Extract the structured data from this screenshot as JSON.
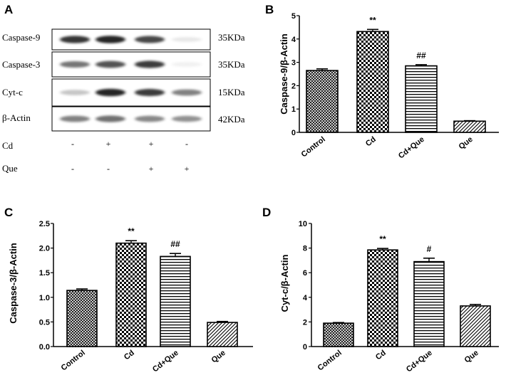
{
  "blot": {
    "letter": "A",
    "rows": [
      {
        "protein": "Caspase-9",
        "size": "35KDa",
        "bands": [
          0.88,
          0.95,
          0.8,
          0.1
        ]
      },
      {
        "protein": "Caspase-3",
        "size": "35KDa",
        "bands": [
          0.6,
          0.75,
          0.85,
          0.06
        ]
      },
      {
        "protein": "Cyt-c",
        "size": "15KDa",
        "bands": [
          0.25,
          0.95,
          0.85,
          0.55
        ]
      },
      {
        "protein": "β-Actin",
        "size": "42KDa",
        "bands": [
          0.55,
          0.62,
          0.52,
          0.48
        ]
      }
    ],
    "treatments": [
      {
        "name": "Cd",
        "signs": [
          "-",
          "+",
          "+",
          "-"
        ]
      },
      {
        "name": "Que",
        "signs": [
          "-",
          "-",
          "+",
          "+"
        ]
      }
    ]
  },
  "chart_data": [
    {
      "letter": "B",
      "type": "bar",
      "categories": [
        "Control",
        "Cd",
        "Cd+Que",
        "Que"
      ],
      "values": [
        2.65,
        4.32,
        2.85,
        0.48
      ],
      "errors": [
        0.07,
        0.09,
        0.05,
        0.02
      ],
      "significance": [
        "",
        "**",
        "##",
        ""
      ],
      "ylabel": "Caspase-9/β-Actin",
      "ylim": [
        0,
        5
      ],
      "yticks": [
        0,
        1,
        2,
        3,
        4,
        5
      ],
      "patterns": [
        "crosshatch",
        "checker",
        "hlines",
        "diagonal"
      ]
    },
    {
      "letter": "C",
      "type": "bar",
      "categories": [
        "Control",
        "Cd",
        "Cd+Que",
        "Que"
      ],
      "values": [
        1.14,
        2.1,
        1.83,
        0.49
      ],
      "errors": [
        0.03,
        0.05,
        0.06,
        0.02
      ],
      "significance": [
        "",
        "**",
        "##",
        ""
      ],
      "ylabel": "Caspase-3/β-Actin",
      "ylim": [
        0,
        2.5
      ],
      "yticks": [
        "0.0",
        "0.5",
        "1.0",
        "1.5",
        "2.0",
        "2.5"
      ],
      "patterns": [
        "crosshatch",
        "checker",
        "hlines",
        "diagonal"
      ]
    },
    {
      "letter": "D",
      "type": "bar",
      "categories": [
        "Control",
        "Cd",
        "Cd+Que",
        "Que"
      ],
      "values": [
        1.9,
        7.85,
        6.9,
        3.3
      ],
      "errors": [
        0.05,
        0.12,
        0.28,
        0.12
      ],
      "significance": [
        "",
        "**",
        "#",
        ""
      ],
      "ylabel": "Cyt-c/β-Actin",
      "ylim": [
        0,
        10
      ],
      "yticks": [
        0,
        2,
        4,
        6,
        8,
        10
      ],
      "patterns": [
        "crosshatch",
        "checker",
        "hlines",
        "diagonal"
      ]
    }
  ]
}
